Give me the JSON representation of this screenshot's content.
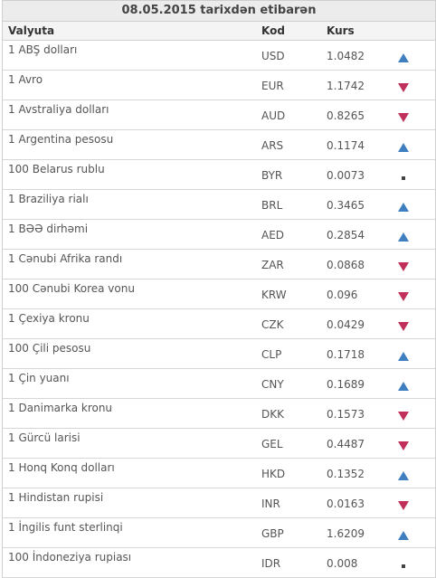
{
  "title": "08.05.2015 tarixdən etibarən",
  "columns": {
    "currency": "Valyuta",
    "code": "Kod",
    "rate": "Kurs"
  },
  "colors": {
    "up": "#3f7fc0",
    "down": "#c0305a",
    "same": "#444444"
  },
  "rows": [
    {
      "name": "1 ABŞ dolları",
      "code": "USD",
      "rate": "1.0482",
      "trend": "up"
    },
    {
      "name": "1 Avro",
      "code": "EUR",
      "rate": "1.1742",
      "trend": "down"
    },
    {
      "name": "1 Avstraliya dolları",
      "code": "AUD",
      "rate": "0.8265",
      "trend": "down"
    },
    {
      "name": "1 Argentina pesosu",
      "code": "ARS",
      "rate": "0.1174",
      "trend": "up"
    },
    {
      "name": "100 Belarus rublu",
      "code": "BYR",
      "rate": "0.0073",
      "trend": "same"
    },
    {
      "name": "1 Braziliya rialı",
      "code": "BRL",
      "rate": "0.3465",
      "trend": "up"
    },
    {
      "name": "1 BƏƏ dirhəmi",
      "code": "AED",
      "rate": "0.2854",
      "trend": "up"
    },
    {
      "name": "1 Cənubi Afrika randı",
      "code": "ZAR",
      "rate": "0.0868",
      "trend": "down"
    },
    {
      "name": "100 Cənubi Korea vonu",
      "code": "KRW",
      "rate": "0.096",
      "trend": "down"
    },
    {
      "name": "1 Çexiya kronu",
      "code": "CZK",
      "rate": "0.0429",
      "trend": "down"
    },
    {
      "name": "100 Çili pesosu",
      "code": "CLP",
      "rate": "0.1718",
      "trend": "up"
    },
    {
      "name": "1 Çin yuanı",
      "code": "CNY",
      "rate": "0.1689",
      "trend": "up"
    },
    {
      "name": "1 Danimarka kronu",
      "code": "DKK",
      "rate": "0.1573",
      "trend": "down"
    },
    {
      "name": "1 Gürcü larisi",
      "code": "GEL",
      "rate": "0.4487",
      "trend": "down"
    },
    {
      "name": "1 Honq Konq dolları",
      "code": "HKD",
      "rate": "0.1352",
      "trend": "up"
    },
    {
      "name": "1 Hindistan rupisi",
      "code": "INR",
      "rate": "0.0163",
      "trend": "down"
    },
    {
      "name": "1 İngilis funt sterlinqi",
      "code": "GBP",
      "rate": "1.6209",
      "trend": "up"
    },
    {
      "name": "100 İndoneziya rupiası",
      "code": "IDR",
      "rate": "0.008",
      "trend": "same"
    }
  ]
}
